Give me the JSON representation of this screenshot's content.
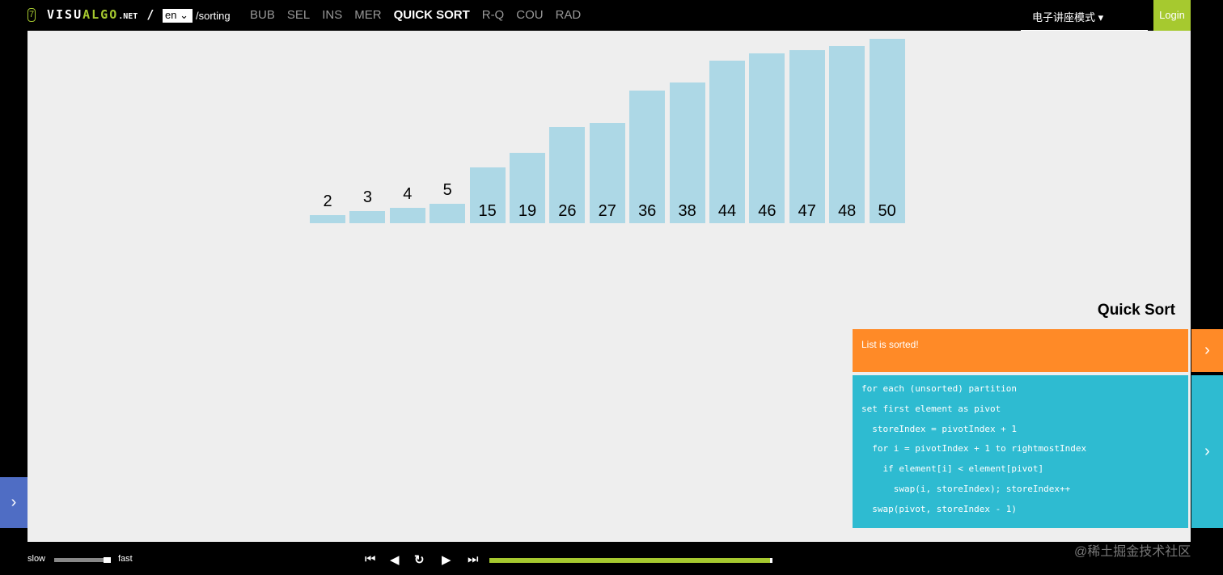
{
  "header": {
    "seven": "7",
    "logo_a": "VISU",
    "logo_b": "ALGO",
    "logo_c": ".NET",
    "sep": "/",
    "lang": "en",
    "path": "/sorting",
    "nav": [
      "BUB",
      "SEL",
      "INS",
      "MER",
      "QUICK SORT",
      "R-Q",
      "COU",
      "RAD"
    ],
    "active": "QUICK SORT",
    "mode": "电子讲座模式 ▾",
    "login": "Login"
  },
  "bars": [
    2,
    3,
    4,
    5,
    15,
    19,
    26,
    27,
    36,
    38,
    44,
    46,
    47,
    48,
    50
  ],
  "panel": {
    "title": "Quick Sort",
    "status": "List is sorted!",
    "code": [
      "for each (unsorted) partition",
      "set first element as pivot",
      "  storeIndex = pivotIndex + 1",
      "  for i = pivotIndex + 1 to rightmostIndex",
      "    if element[i] < element[pivot]",
      "      swap(i, storeIndex); storeIndex++",
      "  swap(pivot, storeIndex - 1)"
    ]
  },
  "controls": {
    "slow": "slow",
    "fast": "fast",
    "speed": 0.9,
    "progress": 1.0
  },
  "watermark": "@稀土掘金技术社区",
  "colors": {
    "bar": "#add8e6",
    "accent": "#a6c92f",
    "status": "#ff8a27",
    "code": "#2ebbd1"
  }
}
